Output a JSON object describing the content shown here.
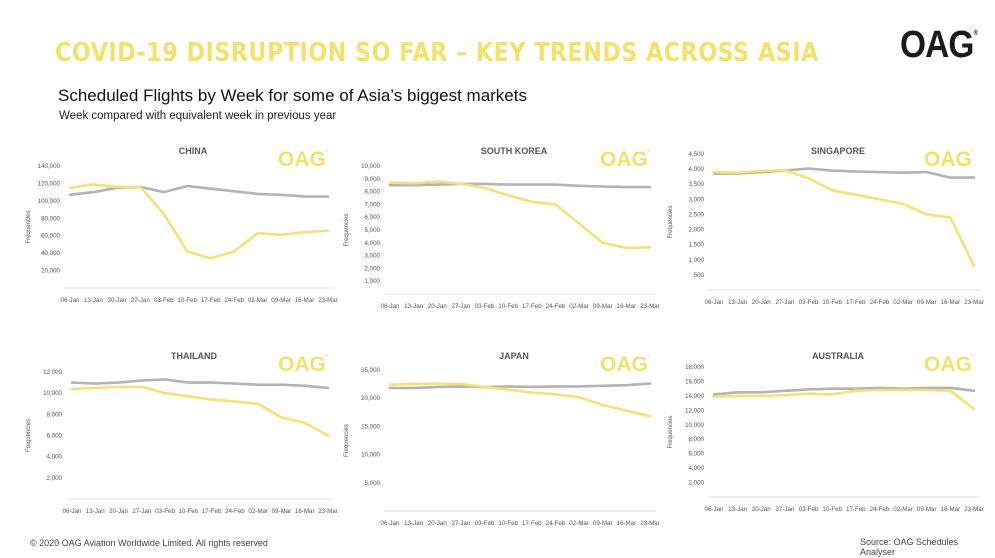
{
  "header": {
    "title": "COVID-19 DISRUPTION SO FAR – KEY TRENDS ACROSS ASIA",
    "logo": "OAG",
    "logo_reg": "®",
    "subtitle": "Scheduled Flights by Week for some of Asia’s biggest markets",
    "subnote": "Week compared with equivalent week in previous year"
  },
  "footer": {
    "copyright": "© 2020 OAG Aviation Worldwide Limited. All rights reserved",
    "source": "Source: OAG Schedules Analyser"
  },
  "colors": {
    "current": "#f5e270",
    "previous": "#b3b3b3",
    "accent": "#f2e26a"
  },
  "chart_data": [
    {
      "type": "line",
      "title": "CHINA",
      "logo": "OAG",
      "ylabel": "Frequencies",
      "ylim": [
        0,
        140000
      ],
      "yticks": [
        "",
        "20,000",
        "40,000",
        "60,000",
        "80,000",
        "100,000",
        "120,000",
        "140,000"
      ],
      "categories": [
        "06-Jan",
        "13-Jan",
        "20-Jan",
        "27-Jan",
        "03-Feb",
        "10-Feb",
        "17-Feb",
        "24-Feb",
        "02-Mar",
        "09-Mar",
        "16-Mar",
        "23-Mar"
      ],
      "series": [
        {
          "values": [
            107000,
            110000,
            115000,
            116000,
            110000,
            117000,
            114000,
            111000,
            108000,
            107000,
            105000,
            105000
          ]
        },
        {
          "values": [
            115000,
            119000,
            116000,
            116000,
            85000,
            42000,
            34000,
            42000,
            63000,
            61000,
            64000,
            66000
          ]
        }
      ]
    },
    {
      "type": "line",
      "title": "SOUTH KOREA",
      "logo": "OAG",
      "ylabel": "Frequencies",
      "ylim": [
        0,
        10000
      ],
      "yticks": [
        "",
        "1,000",
        "2,000",
        "3,000",
        "4,000",
        "5,000",
        "6,000",
        "7,000",
        "8,000",
        "9,000",
        "10,000"
      ],
      "categories": [
        "06-Jan",
        "13-Jan",
        "20-Jan",
        "27-Jan",
        "03-Feb",
        "10-Feb",
        "17-Feb",
        "24-Feb",
        "02-Mar",
        "09-Mar",
        "16-Mar",
        "23-Mar"
      ],
      "series": [
        {
          "values": [
            8500,
            8500,
            8550,
            8600,
            8600,
            8550,
            8550,
            8550,
            8450,
            8400,
            8350,
            8350
          ]
        },
        {
          "values": [
            8700,
            8650,
            8800,
            8600,
            8300,
            7700,
            7200,
            7000,
            5500,
            4000,
            3600,
            3650
          ]
        }
      ]
    },
    {
      "type": "line",
      "title": "SINGAPORE",
      "logo": "OAG",
      "ylabel": "Frequencies",
      "ylim": [
        0,
        4500
      ],
      "yticks": [
        "",
        "500",
        "1,000",
        "1,500",
        "2,000",
        "2,500",
        "3,000",
        "3,500",
        "4,000",
        "4,500"
      ],
      "categories": [
        "06-Jan",
        "13-Jan",
        "20-Jan",
        "27-Jan",
        "03-Feb",
        "10-Feb",
        "17-Feb",
        "24-Feb",
        "02-Mar",
        "09-Mar",
        "16-Mar",
        "23-Mar"
      ],
      "series": [
        {
          "values": [
            3850,
            3850,
            3900,
            3950,
            4020,
            3950,
            3920,
            3900,
            3880,
            3900,
            3720,
            3720
          ]
        },
        {
          "values": [
            3900,
            3880,
            3940,
            3960,
            3700,
            3300,
            3150,
            3000,
            2850,
            2500,
            2400,
            800
          ]
        }
      ]
    },
    {
      "type": "line",
      "title": "THAILAND",
      "logo": "OAG",
      "ylabel": "Frequencies",
      "ylim": [
        0,
        12000
      ],
      "yticks": [
        "",
        "2,000",
        "4,000",
        "6,000",
        "8,000",
        "10,000",
        "12,000"
      ],
      "categories": [
        "06-Jan",
        "13-Jan",
        "20-Jan",
        "27-Jan",
        "03-Feb",
        "10-Feb",
        "17-Feb",
        "24-Feb",
        "02-Mar",
        "09-Mar",
        "16-Mar",
        "23-Mar"
      ],
      "series": [
        {
          "values": [
            11000,
            10900,
            11000,
            11200,
            11300,
            11000,
            11000,
            10900,
            10800,
            10800,
            10700,
            10500
          ]
        },
        {
          "values": [
            10400,
            10500,
            10600,
            10600,
            10000,
            9700,
            9400,
            9200,
            9000,
            7700,
            7200,
            6000
          ]
        }
      ]
    },
    {
      "type": "line",
      "title": "JAPAN",
      "logo": "OAG",
      "ylabel": "Frequencies",
      "ylim": [
        0,
        25000
      ],
      "yticks": [
        "",
        "5,000",
        "10,000",
        "15,000",
        "20,000",
        "25,000"
      ],
      "categories": [
        "06-Jan",
        "13-Jan",
        "20-Jan",
        "27-Jan",
        "03-Feb",
        "10-Feb",
        "17-Feb",
        "24-Feb",
        "02-Mar",
        "09-Mar",
        "16-Mar",
        "23-Mar"
      ],
      "series": [
        {
          "values": [
            21800,
            21800,
            22000,
            22100,
            22000,
            22100,
            22000,
            22100,
            22100,
            22200,
            22300,
            22600
          ]
        },
        {
          "values": [
            22400,
            22500,
            22600,
            22500,
            22000,
            21500,
            21000,
            20700,
            20200,
            18800,
            17800,
            16800
          ]
        }
      ]
    },
    {
      "type": "line",
      "title": "AUSTRALIA",
      "logo": "OAG",
      "ylabel": "Frequencies",
      "ylim": [
        0,
        18000
      ],
      "yticks": [
        "",
        "2,000",
        "4,000",
        "6,000",
        "8,000",
        "10,000",
        "12,000",
        "14,000",
        "16,000",
        "18,000"
      ],
      "categories": [
        "06-Jan",
        "13-Jan",
        "20-Jan",
        "27-Jan",
        "03-Feb",
        "10-Feb",
        "17-Feb",
        "24-Feb",
        "02-Mar",
        "09-Mar",
        "16-Mar",
        "23-Mar"
      ],
      "series": [
        {
          "values": [
            14200,
            14500,
            14500,
            14700,
            14900,
            15000,
            15000,
            15100,
            15000,
            15100,
            15100,
            14700
          ]
        },
        {
          "values": [
            13900,
            14000,
            14000,
            14100,
            14300,
            14200,
            14700,
            14800,
            14800,
            14800,
            14700,
            12200
          ]
        }
      ]
    }
  ]
}
